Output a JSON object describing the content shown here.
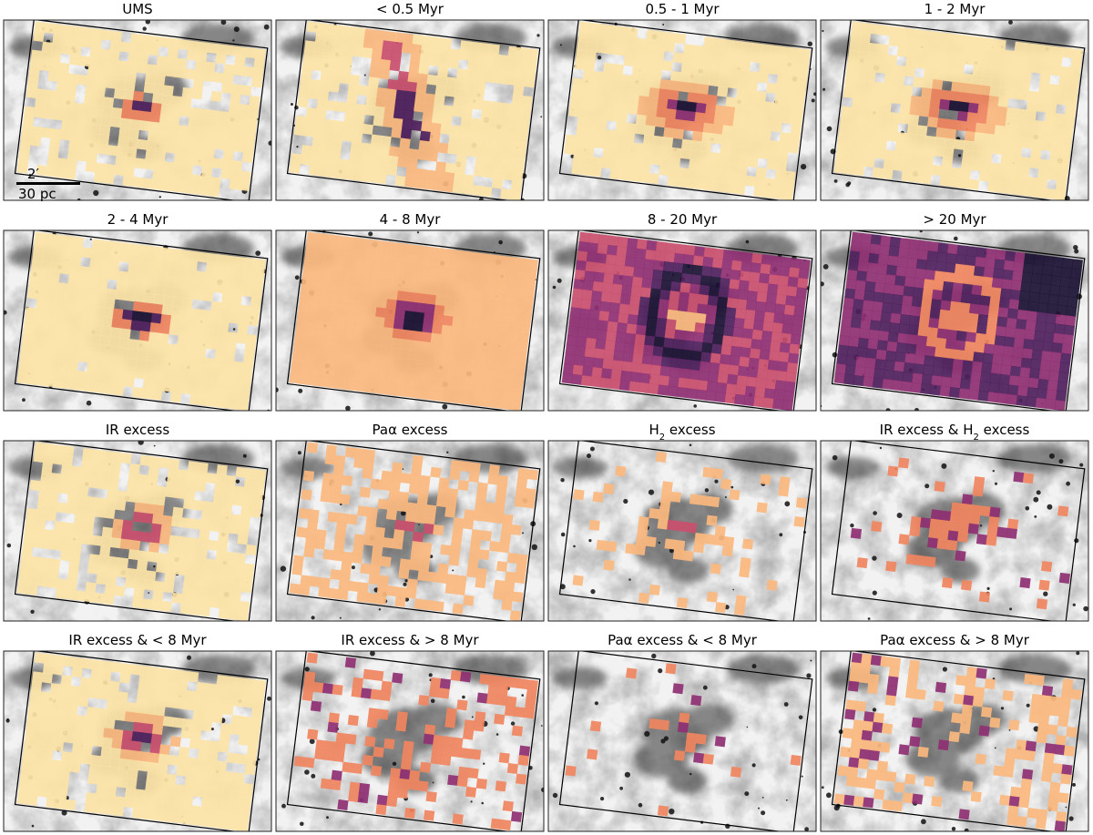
{
  "figure": {
    "colormap": [
      "#fde4a6",
      "#fbb97e",
      "#f0855f",
      "#c94f6e",
      "#8f2f73",
      "#4f1f5c",
      "#1b1233"
    ],
    "scale_bar": {
      "angular": "2′",
      "physical": "30 pc"
    },
    "panels": [
      {
        "title": "UMS",
        "title_sub": "",
        "title_after": "",
        "profile": "ums"
      },
      {
        "title": "< 0.5 Myr",
        "title_sub": "",
        "title_after": "",
        "profile": "young"
      },
      {
        "title": "0.5 - 1 Myr",
        "title_sub": "",
        "title_after": "",
        "profile": "core"
      },
      {
        "title": "1 - 2 Myr",
        "title_sub": "",
        "title_after": "",
        "profile": "core"
      },
      {
        "title": "2 - 4 Myr",
        "title_sub": "",
        "title_after": "",
        "profile": "broad"
      },
      {
        "title": "4 - 8 Myr",
        "title_sub": "",
        "title_after": "",
        "profile": "broad2"
      },
      {
        "title": "8 - 20 Myr",
        "title_sub": "",
        "title_after": "",
        "profile": "old"
      },
      {
        "title": "> 20 Myr",
        "title_sub": "",
        "title_after": "",
        "profile": "oldest"
      },
      {
        "title": "IR excess",
        "title_sub": "",
        "title_after": "",
        "profile": "ir"
      },
      {
        "title": "Paα excess",
        "title_sub": "",
        "title_after": "",
        "profile": "sparse"
      },
      {
        "title": "H",
        "title_sub": "2",
        "title_after": " excess",
        "profile": "sparse2"
      },
      {
        "title": "IR excess & H",
        "title_sub": "2",
        "title_after": " excess",
        "profile": "sparse3"
      },
      {
        "title": "IR excess & < 8 Myr",
        "title_sub": "",
        "title_after": "",
        "profile": "ir"
      },
      {
        "title": "IR excess & > 8 Myr",
        "title_sub": "",
        "title_after": "",
        "profile": "sparse4"
      },
      {
        "title": "Paα excess & < 8 Myr",
        "title_sub": "",
        "title_after": "",
        "profile": "sparse5"
      },
      {
        "title": "Paα excess & > 8 Myr",
        "title_sub": "",
        "title_after": "",
        "profile": "edge"
      }
    ]
  }
}
